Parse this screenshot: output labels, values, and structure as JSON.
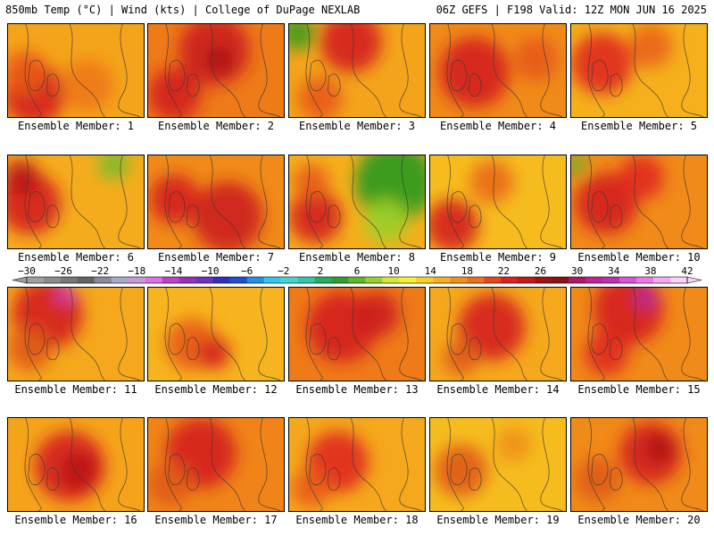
{
  "header": {
    "left": "850mb Temp (°C) | Wind (kts) | College of DuPage NEXLAB",
    "right": "06Z GEFS | F198 Valid: 12Z MON JUN 16 2025"
  },
  "panels": [
    {
      "label": "Ensemble Member: 1",
      "bg": "#f4a41a",
      "hot": [
        [
          30,
          80,
          35,
          "#d42020"
        ],
        [
          20,
          55,
          25,
          "#ea5a14"
        ],
        [
          90,
          70,
          30,
          "#f07818"
        ]
      ],
      "cool": []
    },
    {
      "label": "Ensemble Member: 2",
      "bg": "#ee7a18",
      "hot": [
        [
          75,
          30,
          40,
          "#cc1c1c"
        ],
        [
          30,
          80,
          30,
          "#d42020"
        ],
        [
          80,
          40,
          15,
          "#a81818"
        ]
      ],
      "cool": []
    },
    {
      "label": "Ensemble Member: 3",
      "bg": "#f4a41a",
      "hot": [
        [
          70,
          20,
          35,
          "#d42020"
        ],
        [
          35,
          85,
          25,
          "#e85a14"
        ]
      ],
      "cool": [
        [
          10,
          10,
          20,
          "#3c9c1c"
        ]
      ]
    },
    {
      "label": "Ensemble Member: 4",
      "bg": "#f08a18",
      "hot": [
        [
          50,
          55,
          40,
          "#d42020"
        ],
        [
          120,
          40,
          25,
          "#e85a14"
        ]
      ],
      "cool": []
    },
    {
      "label": "Ensemble Member: 5",
      "bg": "#f5b01c",
      "hot": [
        [
          35,
          45,
          35,
          "#e02a1c"
        ],
        [
          90,
          25,
          25,
          "#ea6414"
        ]
      ],
      "cool": []
    },
    {
      "label": "Ensemble Member: 6",
      "bg": "#f5ac1c",
      "hot": [
        [
          25,
          55,
          35,
          "#d42020"
        ],
        [
          15,
          25,
          20,
          "#b81818"
        ]
      ],
      "cool": [
        [
          120,
          10,
          18,
          "#7cbc2c"
        ]
      ]
    },
    {
      "label": "Ensemble Member: 7",
      "bg": "#f08a18",
      "hot": [
        [
          90,
          70,
          40,
          "#cc1c1c"
        ],
        [
          30,
          50,
          28,
          "#d42020"
        ]
      ],
      "cool": []
    },
    {
      "label": "Ensemble Member: 8",
      "bg": "#f5ae1c",
      "hot": [
        [
          30,
          70,
          30,
          "#d42020"
        ],
        [
          25,
          30,
          20,
          "#e85a14"
        ]
      ],
      "cool": [
        [
          120,
          30,
          45,
          "#2a9a1c"
        ],
        [
          110,
          75,
          25,
          "#9cd02a"
        ]
      ]
    },
    {
      "label": "Ensemble Member: 9",
      "bg": "#f6bc1e",
      "hot": [
        [
          25,
          80,
          30,
          "#d42020"
        ],
        [
          70,
          30,
          25,
          "#ea6a14"
        ]
      ],
      "cool": []
    },
    {
      "label": "Ensemble Member: 10",
      "bg": "#f08a18",
      "hot": [
        [
          40,
          55,
          35,
          "#d42020"
        ],
        [
          80,
          25,
          25,
          "#e02a1c"
        ]
      ],
      "cool": [
        [
          5,
          10,
          12,
          "#6cb42a"
        ]
      ]
    },
    {
      "label": "Ensemble Member: 11",
      "bg": "#f5a81c",
      "hot": [
        [
          45,
          30,
          40,
          "#d42020"
        ],
        [
          25,
          70,
          25,
          "#e05a14"
        ],
        [
          65,
          8,
          10,
          "#c83ccc"
        ]
      ],
      "cool": []
    },
    {
      "label": "Ensemble Member: 12",
      "bg": "#f6b41e",
      "hot": [
        [
          50,
          65,
          30,
          "#e85a14"
        ],
        [
          75,
          75,
          18,
          "#d42020"
        ]
      ],
      "cool": []
    },
    {
      "label": "Ensemble Member: 13",
      "bg": "#ee7a18",
      "hot": [
        [
          60,
          45,
          40,
          "#d42020"
        ],
        [
          100,
          30,
          25,
          "#cc1c1c"
        ]
      ],
      "cool": []
    },
    {
      "label": "Ensemble Member: 14",
      "bg": "#f5a81c",
      "hot": [
        [
          70,
          45,
          38,
          "#d42020"
        ],
        [
          35,
          80,
          20,
          "#e05a14"
        ]
      ],
      "cool": []
    },
    {
      "label": "Ensemble Member: 15",
      "bg": "#f08a18",
      "hot": [
        [
          65,
          25,
          40,
          "#d42020"
        ],
        [
          85,
          12,
          12,
          "#b02aa8"
        ],
        [
          40,
          75,
          25,
          "#e02a1c"
        ]
      ],
      "cool": []
    },
    {
      "label": "Ensemble Member: 16",
      "bg": "#f5a41a",
      "hot": [
        [
          70,
          55,
          40,
          "#d42020"
        ],
        [
          80,
          60,
          20,
          "#b81818"
        ]
      ],
      "cool": []
    },
    {
      "label": "Ensemble Member: 17",
      "bg": "#f08418",
      "hot": [
        [
          60,
          40,
          40,
          "#d42020"
        ],
        [
          25,
          75,
          25,
          "#e05a14"
        ]
      ],
      "cool": []
    },
    {
      "label": "Ensemble Member: 18",
      "bg": "#f5a81c",
      "hot": [
        [
          55,
          50,
          35,
          "#e02a1c"
        ],
        [
          25,
          80,
          22,
          "#e85a14"
        ]
      ],
      "cool": []
    },
    {
      "label": "Ensemble Member: 19",
      "bg": "#f6bc1e",
      "hot": [
        [
          35,
          60,
          30,
          "#e05a14"
        ],
        [
          95,
          30,
          20,
          "#f09018"
        ]
      ],
      "cool": []
    },
    {
      "label": "Ensemble Member: 20",
      "bg": "#f08a18",
      "hot": [
        [
          90,
          40,
          35,
          "#d42020"
        ],
        [
          100,
          35,
          15,
          "#a81818"
        ],
        [
          30,
          70,
          25,
          "#e05a14"
        ]
      ],
      "cool": []
    }
  ],
  "colorbar": {
    "labels": [
      "−30",
      "−26",
      "−22",
      "−18",
      "−14",
      "−10",
      "−6",
      "−2",
      "2",
      "6",
      "10",
      "14",
      "18",
      "22",
      "26",
      "30",
      "34",
      "38",
      "42"
    ],
    "colors": [
      "#a0a0a0",
      "#8c8c8c",
      "#787878",
      "#646464",
      "#8a8a9a",
      "#a8a8c8",
      "#c89ad8",
      "#e070e8",
      "#c040d0",
      "#9a30c0",
      "#7030c8",
      "#3030c0",
      "#2050d8",
      "#2090e8",
      "#30c8f0",
      "#40d8d0",
      "#30c8a8",
      "#20b060",
      "#30a030",
      "#60b828",
      "#98d030",
      "#d8e830",
      "#f8f030",
      "#f8d028",
      "#f8b020",
      "#f49018",
      "#f07018",
      "#e84818",
      "#e02020",
      "#c81818",
      "#a81010",
      "#901010",
      "#b01868",
      "#c82098",
      "#c030b0",
      "#e050d8",
      "#f078e8",
      "#f8a8f0",
      "#fcd0f8"
    ]
  }
}
